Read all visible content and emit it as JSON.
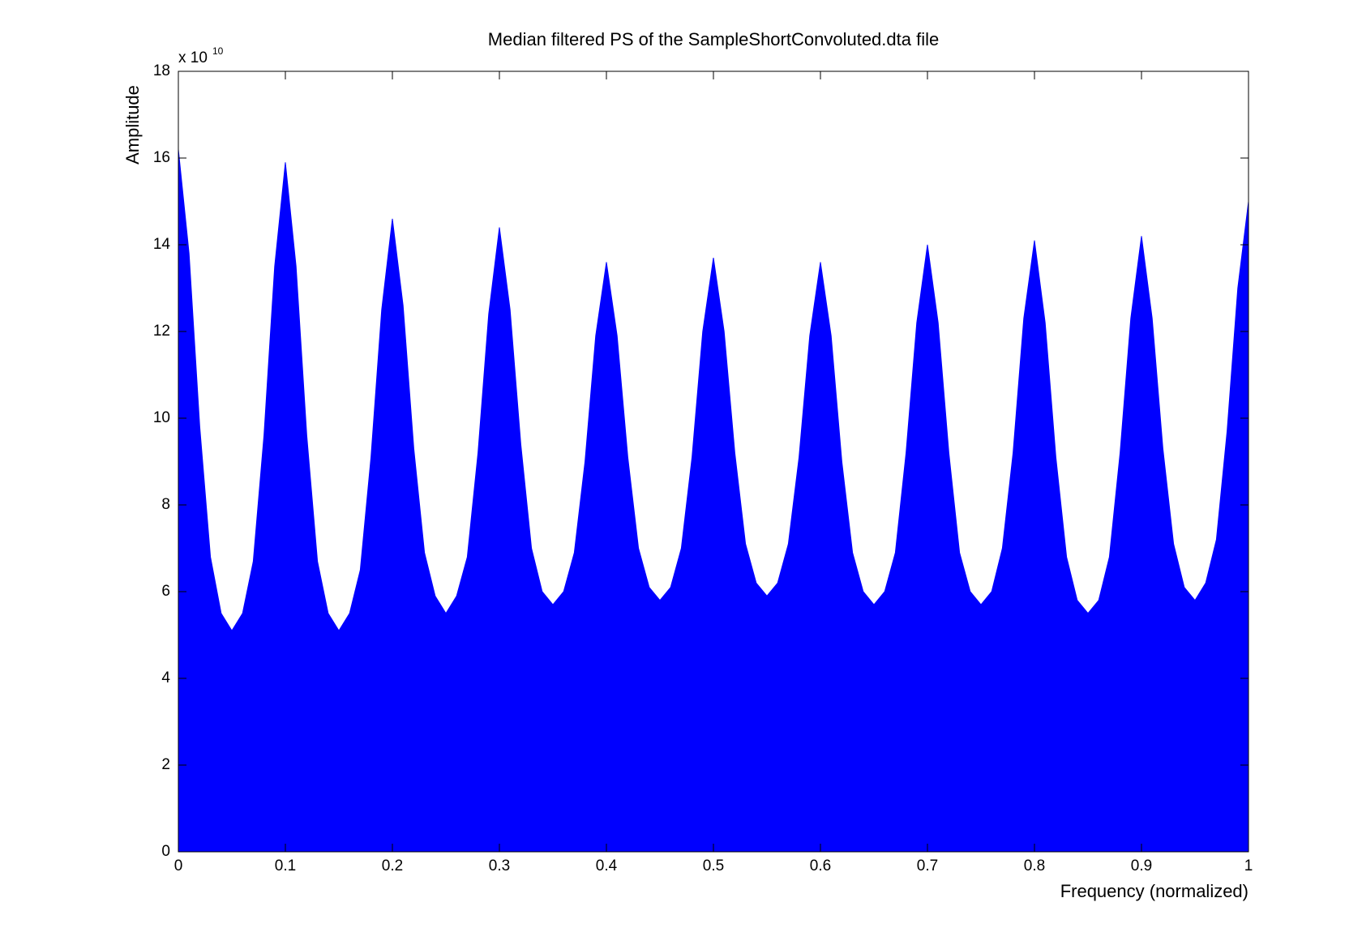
{
  "chart_data": {
    "type": "area",
    "title": "Median filtered PS of the SampleShortConvoluted.dta file",
    "xlabel": "Frequency (normalized)",
    "ylabel": "Amplitude",
    "y_multiplier": {
      "text": "x 10",
      "exponent": "10"
    },
    "color": "#0000ff",
    "x": [
      0,
      0.01,
      0.02,
      0.03,
      0.04,
      0.05,
      0.06,
      0.07,
      0.08,
      0.09,
      0.1,
      0.11,
      0.12,
      0.13,
      0.14,
      0.15,
      0.16,
      0.17,
      0.18,
      0.19,
      0.2,
      0.21,
      0.22,
      0.23,
      0.24,
      0.25,
      0.26,
      0.27,
      0.28,
      0.29,
      0.3,
      0.31,
      0.32,
      0.33,
      0.34,
      0.35,
      0.36,
      0.37,
      0.38,
      0.39,
      0.4,
      0.41,
      0.42,
      0.43,
      0.44,
      0.45,
      0.46,
      0.47,
      0.48,
      0.49,
      0.5,
      0.51,
      0.52,
      0.53,
      0.54,
      0.55,
      0.56,
      0.57,
      0.58,
      0.59,
      0.6,
      0.61,
      0.62,
      0.63,
      0.64,
      0.65,
      0.66,
      0.67,
      0.68,
      0.69,
      0.7,
      0.71,
      0.72,
      0.73,
      0.74,
      0.75,
      0.76,
      0.77,
      0.78,
      0.79,
      0.8,
      0.81,
      0.82,
      0.83,
      0.84,
      0.85,
      0.86,
      0.87,
      0.88,
      0.89,
      0.9,
      0.91,
      0.92,
      0.93,
      0.94,
      0.95,
      0.96,
      0.97,
      0.98,
      0.99,
      1
    ],
    "values": [
      16.2,
      13.8,
      9.8,
      6.8,
      5.5,
      5.1,
      5.5,
      6.7,
      9.6,
      13.5,
      15.9,
      13.5,
      9.6,
      6.7,
      5.5,
      5.1,
      5.5,
      6.5,
      9.1,
      12.5,
      14.6,
      12.6,
      9.3,
      6.9,
      5.9,
      5.5,
      5.9,
      6.8,
      9.2,
      12.4,
      14.4,
      12.5,
      9.4,
      7.0,
      6.0,
      5.7,
      6.0,
      6.9,
      9.0,
      11.9,
      13.6,
      11.9,
      9.1,
      7.0,
      6.1,
      5.8,
      6.1,
      7.0,
      9.1,
      12.0,
      13.7,
      12.0,
      9.2,
      7.1,
      6.2,
      5.9,
      6.2,
      7.1,
      9.1,
      11.9,
      13.6,
      11.9,
      9.0,
      6.9,
      6.0,
      5.7,
      6.0,
      6.9,
      9.2,
      12.2,
      14.0,
      12.2,
      9.2,
      6.9,
      6.0,
      5.7,
      6.0,
      7.0,
      9.2,
      12.3,
      14.1,
      12.2,
      9.1,
      6.8,
      5.8,
      5.5,
      5.8,
      6.8,
      9.2,
      12.3,
      14.2,
      12.3,
      9.3,
      7.1,
      6.1,
      5.8,
      6.2,
      7.2,
      9.7,
      13.0,
      15.0
    ],
    "xlim": [
      0,
      1
    ],
    "xticks": [
      0,
      0.1,
      0.2,
      0.3,
      0.4,
      0.5,
      0.6,
      0.7,
      0.8,
      0.9,
      1
    ],
    "ylim": [
      0,
      18
    ],
    "yticks": [
      0,
      2,
      4,
      6,
      8,
      10,
      12,
      14,
      16,
      18
    ],
    "grid": false
  }
}
